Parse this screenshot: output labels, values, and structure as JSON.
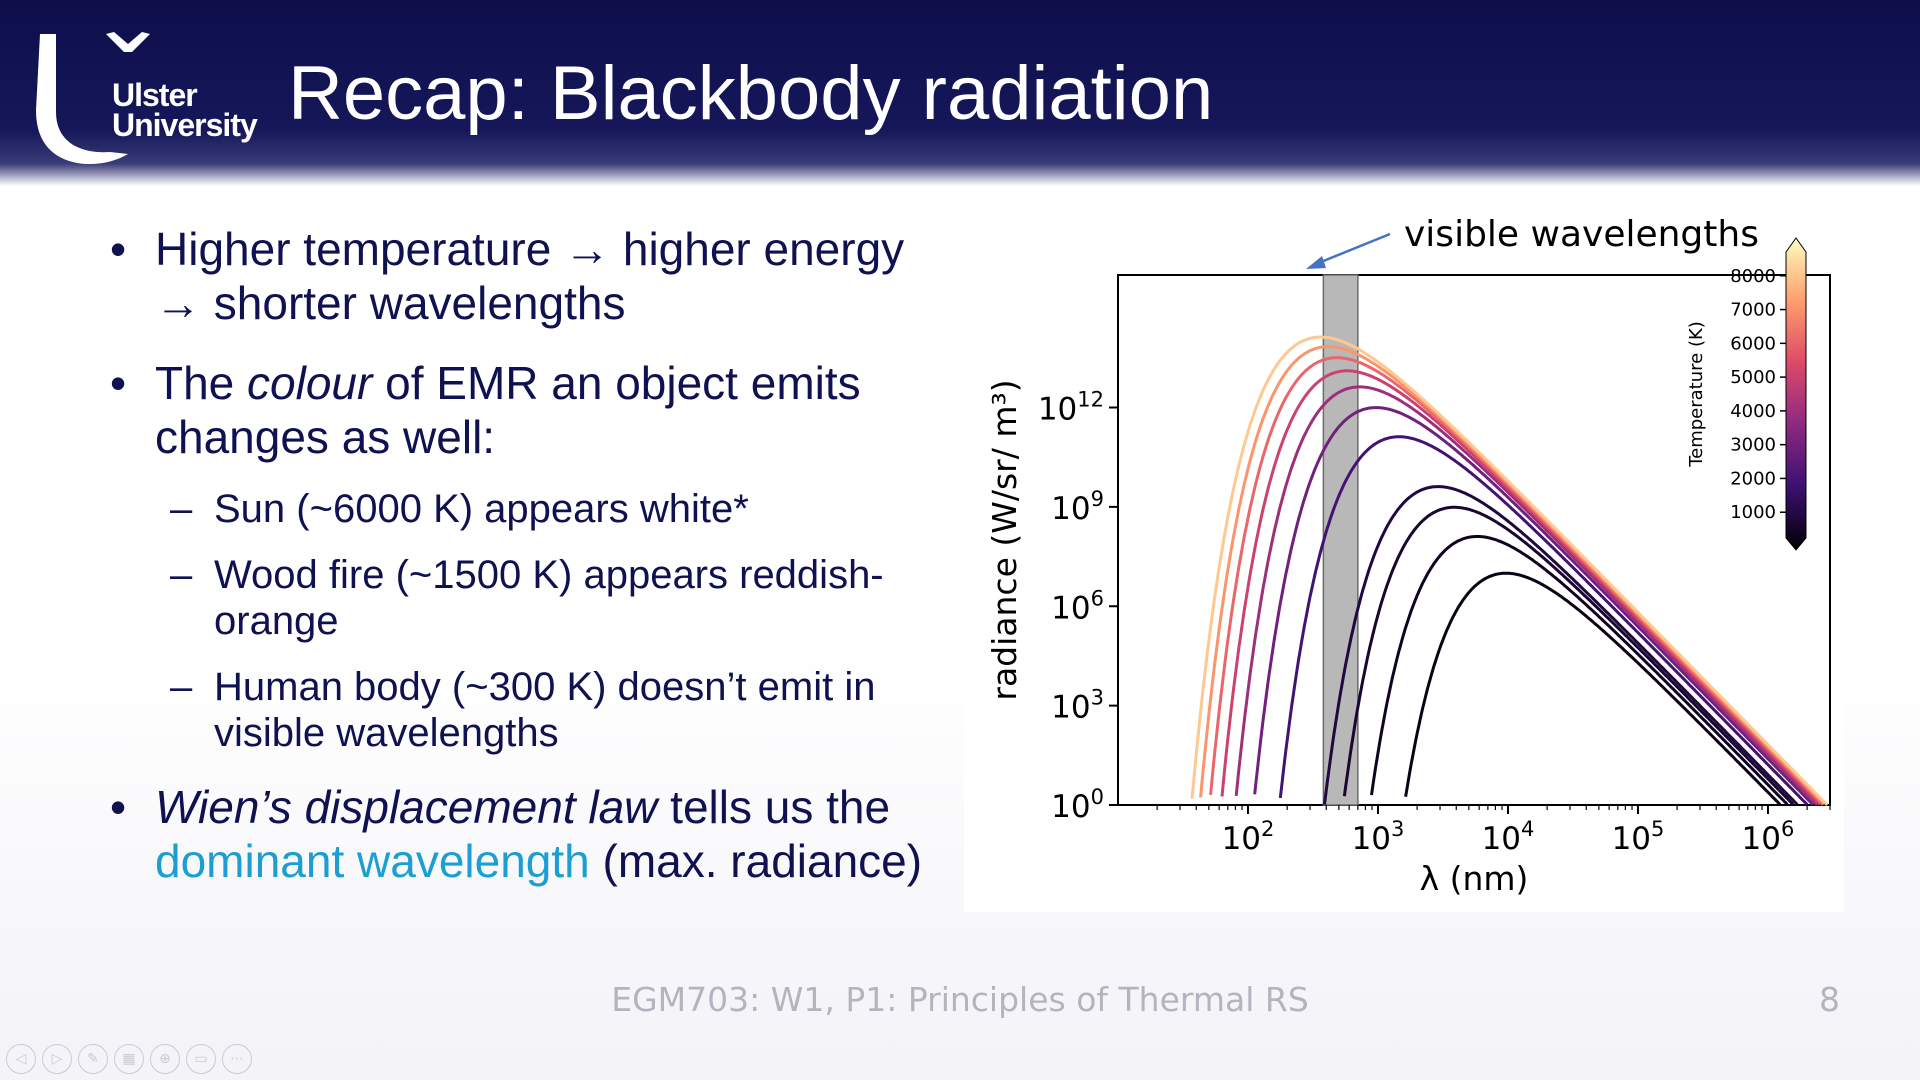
{
  "header": {
    "logo_line1": "Ulster",
    "logo_line2": "University",
    "title": "Recap: Blackbody radiation",
    "background": "#13145a"
  },
  "bullets": [
    {
      "text": "Higher temperature → higher energy → shorter wavelengths"
    },
    {
      "pre": "The ",
      "italic": "colour",
      "post": " of EMR an object emits changes as well:"
    },
    {
      "italic": "Wien’s displacement law",
      "post": " tells us the ",
      "link": "dominant wavelength",
      "post2": " (max. radiance)"
    }
  ],
  "subbullets": [
    "Sun (~6000 K) appears white*",
    "Wood fire (~1500 K) appears reddish-orange",
    "Human body (~300 K) doesn’t emit in visible wavelengths"
  ],
  "bullet_symbol": "•",
  "sub_symbol": "–",
  "accent_color": "#1b9fd3",
  "text_color": "#0f1150",
  "footer": {
    "text": "EGM703: W1, P1: Principles of Thermal RS",
    "page": "8"
  },
  "controls": [
    "prev-icon",
    "next-icon",
    "pen-icon",
    "slides-icon",
    "zoom-icon",
    "subtitles-icon",
    "more-icon"
  ],
  "chart_data": {
    "type": "line",
    "annotation": "visible wavelengths",
    "visible_band_nm": [
      380,
      700
    ],
    "xlabel": "λ (nm)",
    "ylabel": "radiance (W/sr/ m³)",
    "xscale": "log",
    "yscale": "log",
    "xlim": [
      10,
      3000000
    ],
    "ylim": [
      1,
      10000000000000000
    ],
    "xticks": [
      {
        "base": "10",
        "exp": "2"
      },
      {
        "base": "10",
        "exp": "3"
      },
      {
        "base": "10",
        "exp": "4"
      },
      {
        "base": "10",
        "exp": "5"
      },
      {
        "base": "10",
        "exp": "6"
      }
    ],
    "yticks": [
      {
        "base": "10",
        "exp": "0"
      },
      {
        "base": "10",
        "exp": "3"
      },
      {
        "base": "10",
        "exp": "6"
      },
      {
        "base": "10",
        "exp": "9"
      },
      {
        "base": "10",
        "exp": "12"
      }
    ],
    "series_temperatures_K": [
      300,
      500,
      750,
      1000,
      2000,
      3000,
      4000,
      5000,
      6000,
      7000,
      8000
    ],
    "colorbar": {
      "label": "Temperature (K)",
      "ticks": [
        "1000",
        "2000",
        "3000",
        "4000",
        "5000",
        "6000",
        "7000",
        "8000"
      ],
      "range": [
        0,
        9000
      ],
      "colors": [
        "#000004",
        "#3b0f70",
        "#8c2981",
        "#de4968",
        "#fe9f6d",
        "#fcfdbf"
      ]
    }
  }
}
